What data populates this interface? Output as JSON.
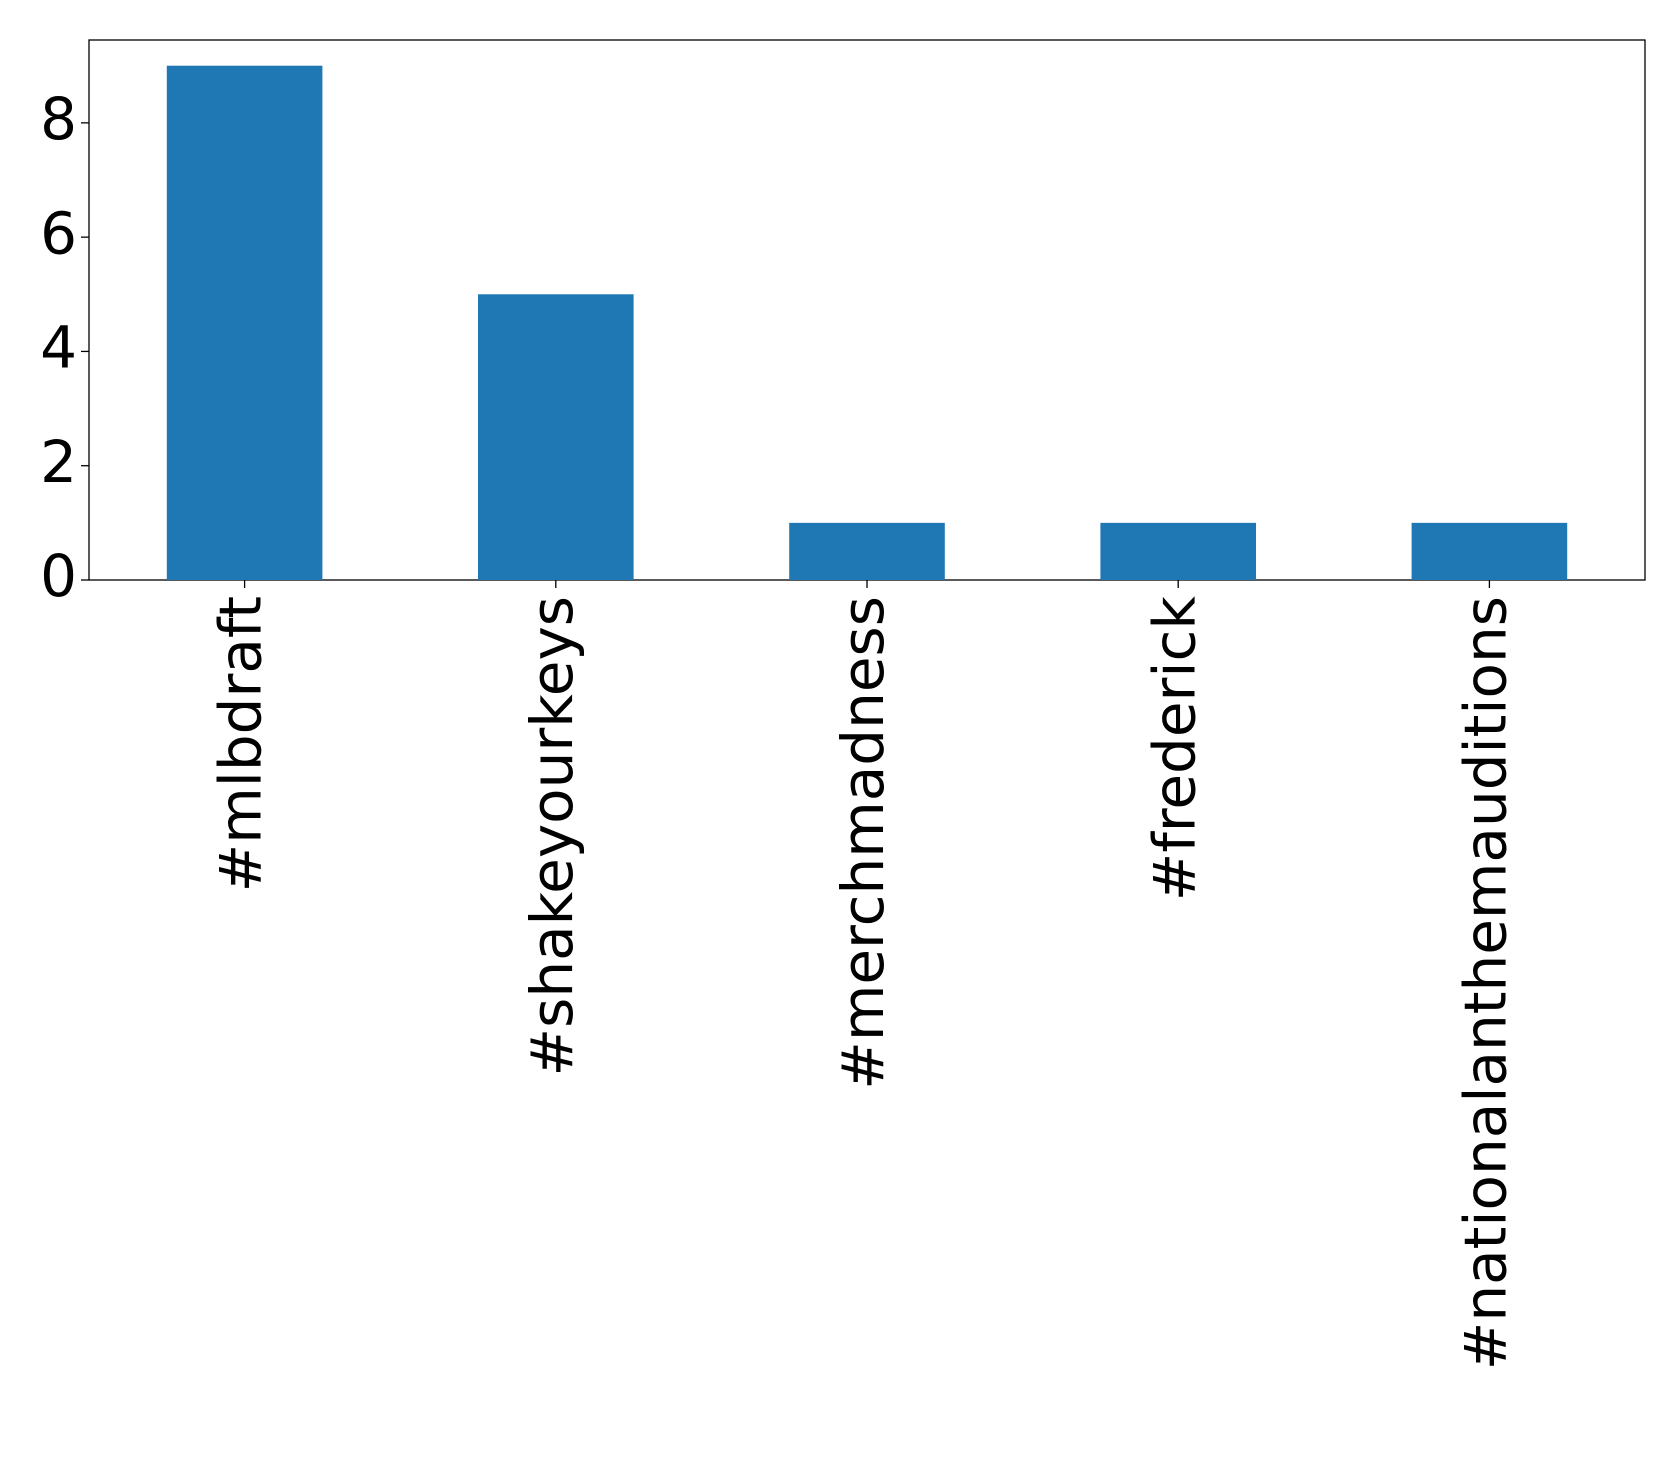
{
  "chart_data": {
    "type": "bar",
    "categories": [
      "#mlbdraft",
      "#shakeyourkeys",
      "#merchmadness",
      "#frederick",
      "#nationalanthemauditions"
    ],
    "values": [
      9,
      5,
      1,
      1,
      1
    ],
    "color": "#1f77b4",
    "ylim": [
      0,
      9.45
    ],
    "yticks": [
      0,
      2,
      4,
      6,
      8
    ],
    "grid": false
  }
}
